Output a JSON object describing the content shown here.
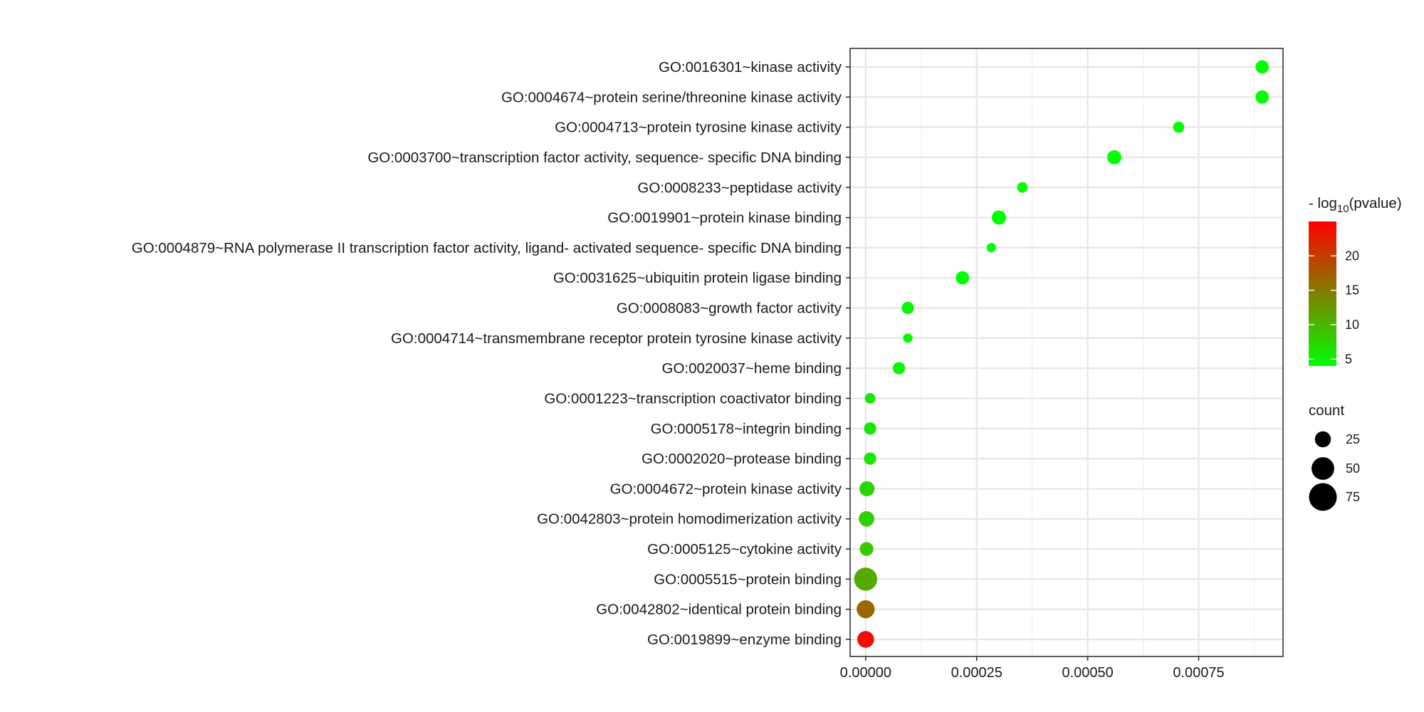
{
  "chart_data": {
    "type": "scatter",
    "title": "",
    "xlabel": "",
    "ylabel": "",
    "xlim": [
      -3.5e-05,
      0.00094
    ],
    "x_ticks": [
      0,
      0.00025,
      0.0005,
      0.00075
    ],
    "x_tick_labels": [
      "0.00000",
      "0.00025",
      "0.00050",
      "0.00075"
    ],
    "grid": true,
    "categories": [
      "GO:0016301~kinase activity",
      "GO:0004674~protein serine/threonine kinase activity",
      "GO:0004713~protein tyrosine kinase activity",
      "GO:0003700~transcription factor activity, sequence- specific DNA binding",
      "GO:0008233~peptidase activity",
      "GO:0019901~protein kinase binding",
      "GO:0004879~RNA polymerase II transcription factor activity, ligand- activated sequence- specific DNA binding",
      "GO:0031625~ubiquitin protein ligase binding",
      "GO:0008083~growth factor activity",
      "GO:0004714~transmembrane receptor protein tyrosine kinase activity",
      "GO:0020037~heme binding",
      "GO:0001223~transcription coactivator binding",
      "GO:0005178~integrin binding",
      "GO:0002020~protease binding",
      "GO:0004672~protein kinase activity",
      "GO:0042803~protein homodimerization activity",
      "GO:0005125~cytokine activity",
      "GO:0005515~protein binding",
      "GO:0042802~identical protein binding",
      "GO:0019899~enzyme binding"
    ],
    "points": [
      {
        "x": 0.000893,
        "count": 28,
        "neglog10p": 3.05
      },
      {
        "x": 0.000893,
        "count": 28,
        "neglog10p": 3.05
      },
      {
        "x": 0.000705,
        "count": 20,
        "neglog10p": 3.15
      },
      {
        "x": 0.00056,
        "count": 32,
        "neglog10p": 3.25
      },
      {
        "x": 0.000353,
        "count": 18,
        "neglog10p": 3.5
      },
      {
        "x": 0.0003,
        "count": 32,
        "neglog10p": 3.6
      },
      {
        "x": 0.000283,
        "count": 14,
        "neglog10p": 3.6
      },
      {
        "x": 0.000218,
        "count": 28,
        "neglog10p": 3.8
      },
      {
        "x": 9.5e-05,
        "count": 24,
        "neglog10p": 4.6
      },
      {
        "x": 9.5e-05,
        "count": 14,
        "neglog10p": 4.6
      },
      {
        "x": 7.5e-05,
        "count": 24,
        "neglog10p": 4.8
      },
      {
        "x": 1e-05,
        "count": 18,
        "neglog10p": 6.0
      },
      {
        "x": 1e-05,
        "count": 24,
        "neglog10p": 6.0
      },
      {
        "x": 1e-05,
        "count": 24,
        "neglog10p": 6.0
      },
      {
        "x": 3e-06,
        "count": 36,
        "neglog10p": 7.5
      },
      {
        "x": 2e-06,
        "count": 38,
        "neglog10p": 8.0
      },
      {
        "x": 2e-06,
        "count": 30,
        "neglog10p": 8.5
      },
      {
        "x": 0.0,
        "count": 85,
        "neglog10p": 11.0
      },
      {
        "x": 0.0,
        "count": 52,
        "neglog10p": 16.5
      },
      {
        "x": 0.0,
        "count": 45,
        "neglog10p": 24.0
      }
    ],
    "color_legend": {
      "title_prefix": "- log",
      "title_sub": "10",
      "title_suffix": "(pvalue)",
      "min": 4,
      "max": 25,
      "ticks": [
        5,
        10,
        15,
        20
      ],
      "tick_labels": [
        "5",
        "10",
        "15",
        "20"
      ],
      "low_color": "#00ff00",
      "high_color": "#ff0000"
    },
    "size_legend": {
      "title": "count",
      "values": [
        25,
        50,
        75
      ],
      "labels": [
        "25",
        "50",
        "75"
      ]
    }
  }
}
